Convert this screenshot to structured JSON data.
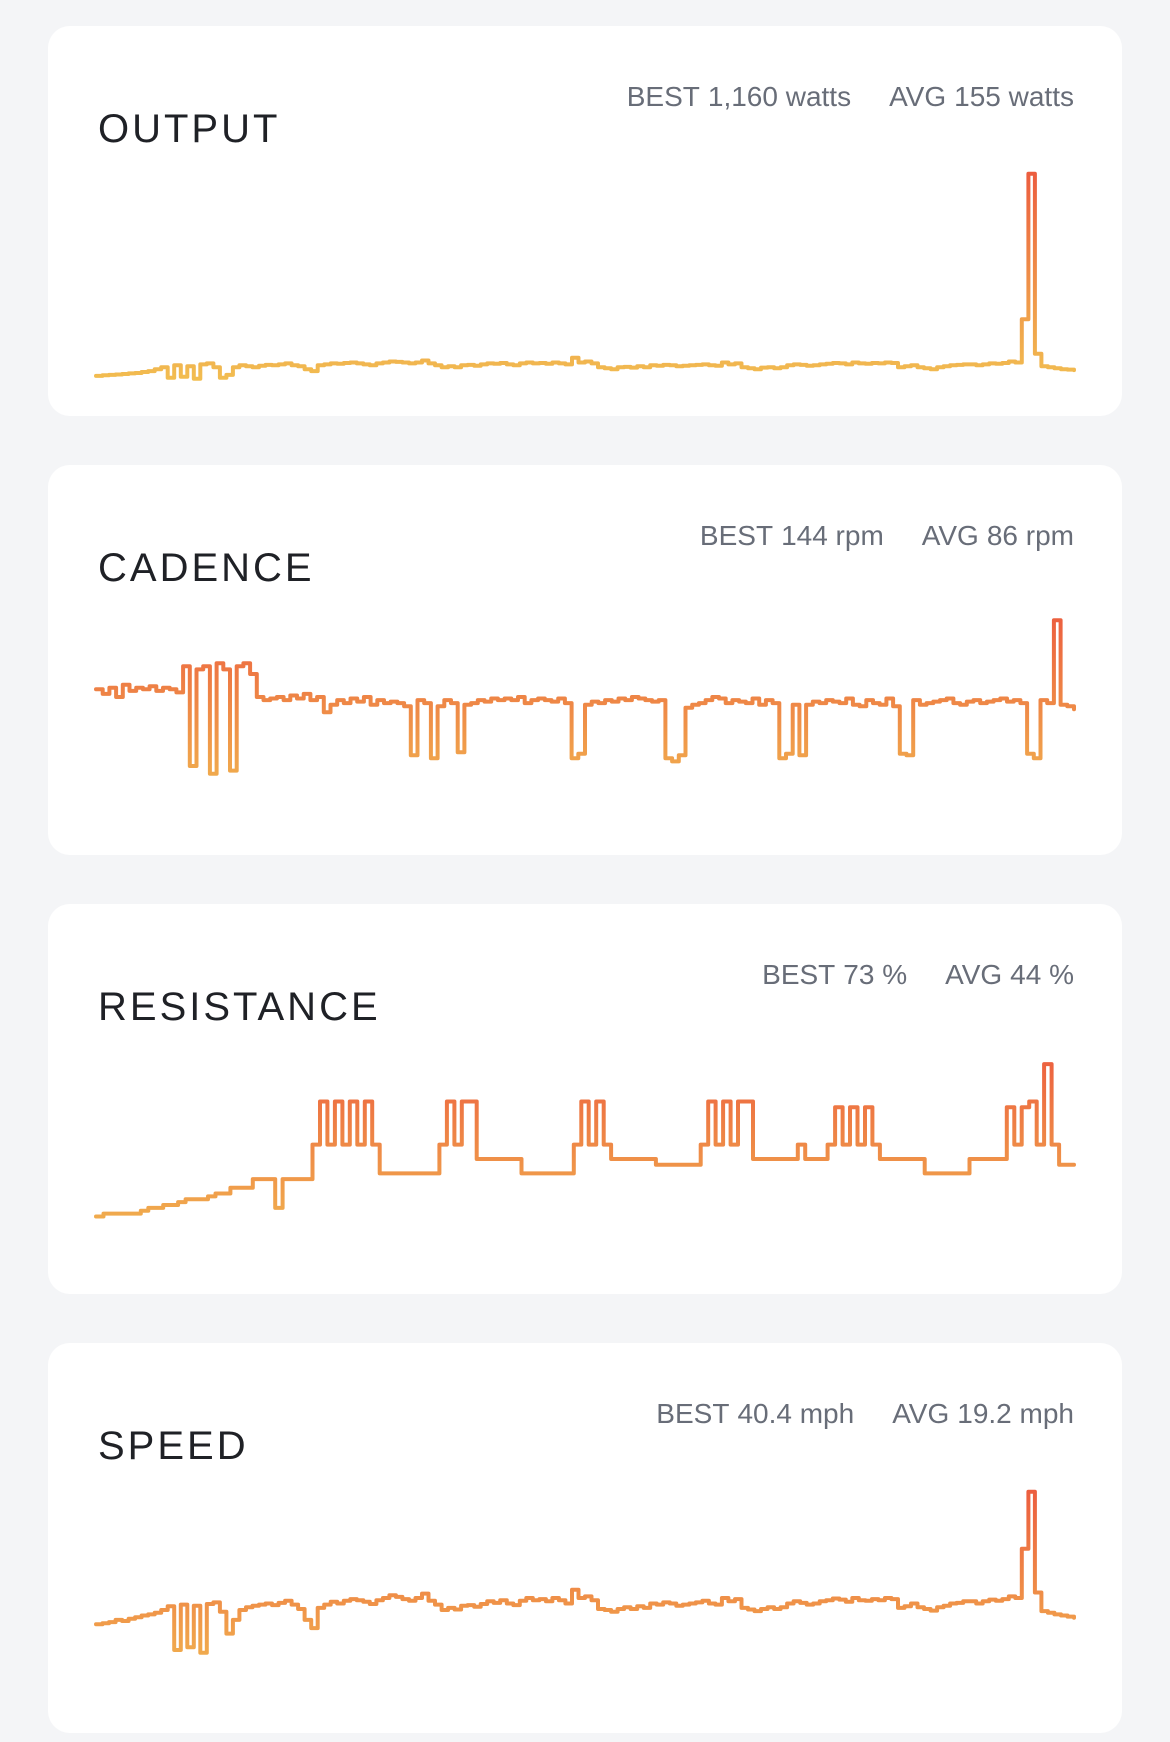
{
  "metrics": [
    {
      "id": "output",
      "title": "OUTPUT",
      "best": {
        "label": "BEST",
        "value": "1,160 watts"
      },
      "avg": {
        "label": "AVG",
        "value": "155 watts"
      },
      "colors": {
        "low": "#f2c552",
        "high": "#ec5a3e"
      },
      "chart_data": {
        "type": "line",
        "title": "",
        "xlabel": "",
        "ylabel": "",
        "ylim": [
          0,
          1200
        ],
        "series": [
          {
            "values": [
              105,
              108,
              110,
              112,
              115,
              118,
              120,
              125,
              130,
              140,
              150,
              95,
              160,
              100,
              155,
              90,
              165,
              170,
              150,
              95,
              110,
              150,
              160,
              155,
              150,
              158,
              162,
              160,
              165,
              170,
              160,
              155,
              140,
              130,
              160,
              165,
              170,
              168,
              172,
              175,
              170,
              165,
              160,
              170,
              175,
              180,
              178,
              175,
              170,
              175,
              185,
              170,
              160,
              150,
              155,
              150,
              160,
              162,
              158,
              165,
              170,
              168,
              172,
              165,
              160,
              170,
              175,
              170,
              172,
              168,
              175,
              170,
              165,
              200,
              175,
              180,
              170,
              150,
              145,
              140,
              150,
              152,
              148,
              155,
              150,
              160,
              158,
              162,
              160,
              155,
              158,
              160,
              162,
              165,
              160,
              158,
              175,
              165,
              170,
              150,
              145,
              140,
              148,
              150,
              145,
              150,
              160,
              165,
              162,
              158,
              160,
              165,
              168,
              172,
              170,
              165,
              175,
              170,
              168,
              172,
              170,
              175,
              172,
              150,
              155,
              160,
              150,
              145,
              140,
              150,
              155,
              160,
              162,
              165,
              165,
              160,
              165,
              170,
              168,
              172,
              180,
              175,
              400,
              1160,
              220,
              155,
              150,
              145,
              140,
              138,
              135
            ]
          }
        ]
      }
    },
    {
      "id": "cadence",
      "title": "CADENCE",
      "best": {
        "label": "BEST",
        "value": "144 rpm"
      },
      "avg": {
        "label": "AVG",
        "value": "86 rpm"
      },
      "colors": {
        "low": "#f2c552",
        "high": "#ec5a3e"
      },
      "chart_data": {
        "type": "line",
        "title": "",
        "xlabel": "",
        "ylabel": "",
        "ylim": [
          0,
          150
        ],
        "series": [
          {
            "values": [
              95,
              92,
              96,
              90,
              98,
              94,
              96,
              95,
              97,
              94,
              96,
              95,
              93,
              110,
              45,
              108,
              110,
              40,
              112,
              108,
              42,
              110,
              112,
              105,
              90,
              88,
              89,
              90,
              88,
              91,
              89,
              92,
              88,
              90,
              80,
              85,
              88,
              86,
              89,
              87,
              90,
              85,
              88,
              86,
              87,
              86,
              84,
              52,
              88,
              86,
              50,
              84,
              88,
              86,
              54,
              85,
              86,
              88,
              87,
              89,
              88,
              89,
              88,
              90,
              86,
              88,
              89,
              88,
              87,
              89,
              86,
              50,
              53,
              85,
              87,
              86,
              88,
              87,
              89,
              88,
              90,
              89,
              88,
              87,
              88,
              50,
              48,
              52,
              83,
              85,
              86,
              88,
              90,
              89,
              86,
              88,
              87,
              86,
              89,
              85,
              88,
              86,
              50,
              53,
              85,
              52,
              85,
              87,
              86,
              88,
              87,
              86,
              89,
              85,
              84,
              88,
              86,
              85,
              89,
              84,
              53,
              52,
              88,
              85,
              86,
              87,
              88,
              89,
              86,
              85,
              87,
              88,
              86,
              87,
              88,
              89,
              87,
              88,
              86,
              53,
              50,
              88,
              86,
              140,
              85,
              84,
              82
            ]
          }
        ]
      }
    },
    {
      "id": "resistance",
      "title": "RESISTANCE",
      "best": {
        "label": "BEST",
        "value": "73 %"
      },
      "avg": {
        "label": "AVG",
        "value": "44 %"
      },
      "colors": {
        "low": "#f2c552",
        "high": "#ec5a3e"
      },
      "chart_data": {
        "type": "line",
        "title": "",
        "xlabel": "",
        "ylabel": "",
        "ylim": [
          0,
          80
        ],
        "series": [
          {
            "values": [
              20,
              21,
              21,
              21,
              21,
              21,
              22,
              23,
              23,
              24,
              24,
              25,
              26,
              26,
              26,
              27,
              28,
              28,
              30,
              30,
              30,
              33,
              33,
              33,
              23,
              33,
              33,
              33,
              33,
              45,
              60,
              45,
              60,
              45,
              60,
              45,
              60,
              45,
              35,
              35,
              35,
              35,
              35,
              35,
              35,
              35,
              45,
              60,
              45,
              60,
              60,
              40,
              40,
              40,
              40,
              40,
              40,
              35,
              35,
              35,
              35,
              35,
              35,
              35,
              45,
              60,
              45,
              60,
              45,
              40,
              40,
              40,
              40,
              40,
              40,
              38,
              38,
              38,
              38,
              38,
              38,
              45,
              60,
              45,
              60,
              45,
              60,
              60,
              40,
              40,
              40,
              40,
              40,
              40,
              45,
              40,
              40,
              40,
              45,
              58,
              45,
              58,
              45,
              58,
              45,
              40,
              40,
              40,
              40,
              40,
              40,
              35,
              35,
              35,
              35,
              35,
              35,
              40,
              40,
              40,
              40,
              40,
              58,
              45,
              58,
              60,
              45,
              73,
              45,
              38,
              38,
              38
            ]
          }
        ]
      }
    },
    {
      "id": "speed",
      "title": "SPEED",
      "best": {
        "label": "BEST",
        "value": "40.4 mph"
      },
      "avg": {
        "label": "AVG",
        "value": "19.2 mph"
      },
      "colors": {
        "low": "#f2c552",
        "high": "#ec5a3e"
      },
      "chart_data": {
        "type": "line",
        "title": "",
        "xlabel": "",
        "ylabel": "",
        "ylim": [
          0,
          42
        ],
        "series": [
          {
            "values": [
              16.2,
              16.4,
              16.6,
              17.0,
              16.8,
              17.2,
              17.5,
              17.8,
              18.0,
              18.3,
              18.8,
              19.5,
              11.5,
              19.8,
              12.0,
              19.6,
              11.0,
              19.9,
              20.2,
              18.5,
              14.5,
              17.0,
              18.8,
              19.3,
              19.6,
              19.8,
              20.0,
              19.7,
              20.1,
              20.5,
              19.8,
              19.0,
              17.0,
              15.5,
              19.2,
              19.8,
              20.3,
              20.0,
              20.5,
              20.8,
              20.6,
              20.3,
              19.9,
              20.6,
              21.0,
              21.5,
              21.2,
              20.8,
              20.5,
              21.0,
              21.8,
              20.5,
              19.8,
              18.8,
              19.2,
              18.9,
              19.6,
              19.7,
              19.4,
              19.9,
              20.4,
              20.1,
              20.6,
              20.0,
              19.7,
              20.5,
              21.0,
              20.6,
              20.8,
              20.4,
              21.0,
              20.6,
              20.0,
              22.5,
              21.0,
              21.3,
              20.6,
              19.0,
              18.8,
              18.5,
              19.0,
              19.3,
              19.0,
              19.5,
              19.2,
              20.0,
              19.8,
              20.2,
              20.0,
              19.6,
              19.8,
              20.0,
              20.2,
              20.5,
              20.0,
              19.8,
              21.0,
              20.4,
              20.8,
              19.2,
              18.9,
              18.6,
              19.0,
              19.3,
              19.0,
              19.3,
              20.0,
              20.4,
              20.1,
              19.8,
              20.0,
              20.4,
              20.6,
              20.9,
              20.7,
              20.3,
              21.0,
              20.6,
              20.5,
              20.8,
              20.6,
              21.0,
              20.8,
              19.2,
              19.5,
              20.0,
              19.3,
              19.0,
              18.7,
              19.3,
              19.6,
              20.0,
              20.1,
              20.4,
              20.4,
              20.0,
              20.4,
              20.7,
              20.5,
              20.8,
              21.3,
              21.0,
              30.0,
              40.4,
              22.0,
              18.6,
              18.3,
              18.0,
              17.8,
              17.6,
              17.4
            ]
          }
        ]
      }
    }
  ]
}
